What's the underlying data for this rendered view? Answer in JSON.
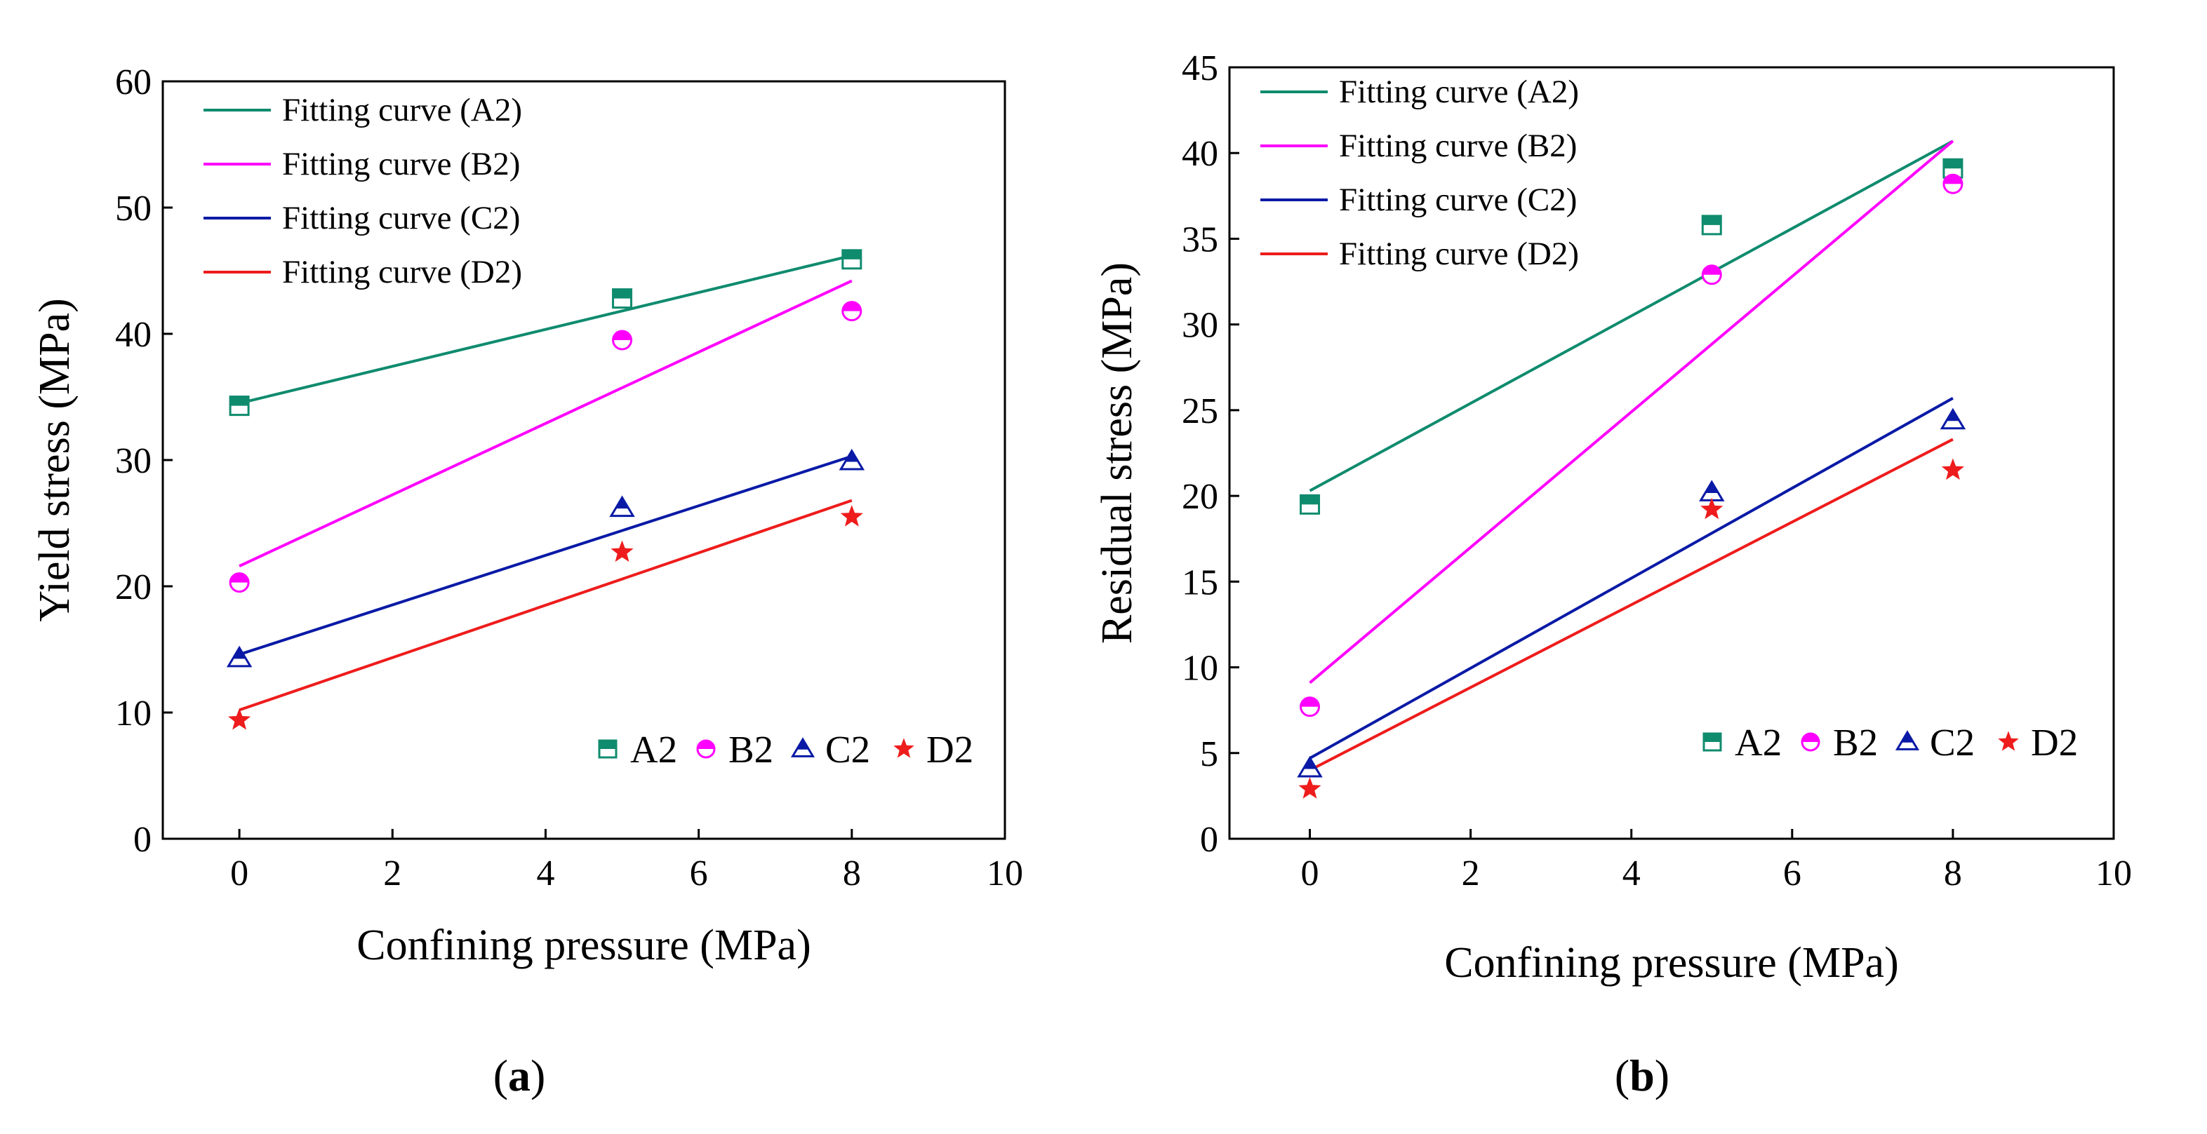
{
  "panels": [
    {
      "id": "a",
      "caption_open": "(",
      "caption_letter": "a",
      "caption_close": ")"
    },
    {
      "id": "b",
      "caption_open": "(",
      "caption_letter": "b",
      "caption_close": ")"
    }
  ],
  "chart_data": [
    {
      "type": "scatter",
      "panel": "a",
      "xlabel": "Confining pressure (MPa)",
      "ylabel": "Yield stress (MPa)",
      "xlim": [
        -1,
        10
      ],
      "ylim": [
        0,
        60
      ],
      "xticks": [
        0,
        2,
        4,
        6,
        8,
        10
      ],
      "yticks": [
        0,
        10,
        20,
        30,
        40,
        50,
        60
      ],
      "grid": false,
      "line_legend_placement": "top-left",
      "point_legend_placement": "bottom-right",
      "series": [
        {
          "name": "A2",
          "fit_name": "Fitting curve (A2)",
          "color": "#0f8b6e",
          "marker": "square",
          "x": [
            0,
            5,
            8
          ],
          "y": [
            34.3,
            42.8,
            45.9
          ],
          "fit": [
            [
              0,
              34.5
            ],
            [
              8,
              46.2
            ]
          ]
        },
        {
          "name": "B2",
          "fit_name": "Fitting curve (B2)",
          "color": "#ff00ff",
          "marker": "circle",
          "x": [
            0,
            5,
            8
          ],
          "y": [
            20.3,
            39.5,
            41.8
          ],
          "fit": [
            [
              0,
              21.6
            ],
            [
              8,
              44.2
            ]
          ]
        },
        {
          "name": "C2",
          "fit_name": "Fitting curve (C2)",
          "color": "#0a1aa6",
          "marker": "triangle",
          "x": [
            0,
            5,
            8
          ],
          "y": [
            14.3,
            26.2,
            29.9
          ],
          "fit": [
            [
              0,
              14.6
            ],
            [
              8,
              30.3
            ]
          ]
        },
        {
          "name": "D2",
          "fit_name": "Fitting curve (D2)",
          "color": "#ee1c1c",
          "marker": "star",
          "x": [
            0,
            5,
            8
          ],
          "y": [
            9.4,
            22.7,
            25.5
          ],
          "fit": [
            [
              0,
              10.2
            ],
            [
              8,
              26.8
            ]
          ]
        }
      ]
    },
    {
      "type": "scatter",
      "panel": "b",
      "xlabel": "Confining pressure (MPa)",
      "ylabel": "Residual stress (MPa)",
      "xlim": [
        -1,
        10
      ],
      "ylim": [
        0,
        45
      ],
      "xticks": [
        0,
        2,
        4,
        6,
        8,
        10
      ],
      "yticks": [
        0,
        5,
        10,
        15,
        20,
        25,
        30,
        35,
        40,
        45
      ],
      "grid": false,
      "line_legend_placement": "top-left",
      "point_legend_placement": "bottom-right",
      "series": [
        {
          "name": "A2",
          "fit_name": "Fitting curve (A2)",
          "color": "#0f8b6e",
          "marker": "square",
          "x": [
            0,
            5,
            8
          ],
          "y": [
            19.5,
            35.8,
            39.1
          ],
          "fit": [
            [
              0,
              20.3
            ],
            [
              8,
              40.7
            ]
          ]
        },
        {
          "name": "B2",
          "fit_name": "Fitting curve (B2)",
          "color": "#ff00ff",
          "marker": "circle",
          "x": [
            0,
            5,
            8
          ],
          "y": [
            7.7,
            32.9,
            38.2
          ],
          "fit": [
            [
              0,
              9.1
            ],
            [
              8,
              40.7
            ]
          ]
        },
        {
          "name": "C2",
          "fit_name": "Fitting curve (C2)",
          "color": "#0a1aa6",
          "marker": "triangle",
          "x": [
            0,
            5,
            8
          ],
          "y": [
            4.1,
            20.2,
            24.4
          ],
          "fit": [
            [
              0,
              4.7
            ],
            [
              8,
              25.7
            ]
          ]
        },
        {
          "name": "D2",
          "fit_name": "Fitting curve (D2)",
          "color": "#ee1c1c",
          "marker": "star",
          "x": [
            0,
            5,
            8
          ],
          "y": [
            2.9,
            19.2,
            21.5
          ],
          "fit": [
            [
              0,
              4.0
            ],
            [
              8,
              23.3
            ]
          ]
        }
      ]
    }
  ]
}
